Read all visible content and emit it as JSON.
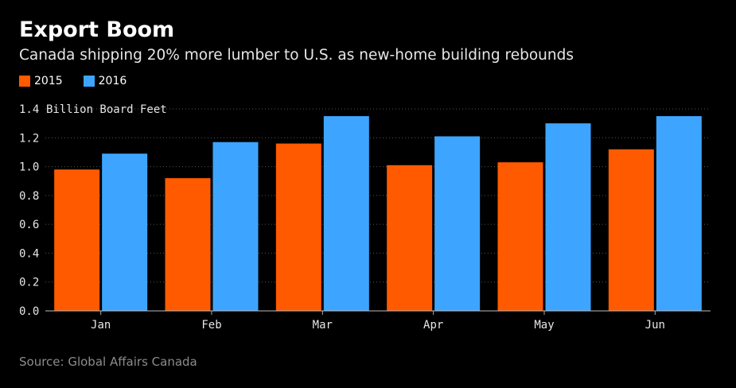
{
  "header": {
    "title": "Export Boom",
    "subtitle": "Canada shipping 20% more lumber to U.S. as new-home building rebounds"
  },
  "footer": {
    "source": "Source: Global Affairs Canada"
  },
  "colors": {
    "series_2015": "#ff5a00",
    "series_2016": "#3da5ff",
    "background": "#000000"
  },
  "chart_data": {
    "type": "bar",
    "title": "Export Boom",
    "subtitle": "Canada shipping 20% more lumber to U.S. as new-home building rebounds",
    "ylabel": "Billion Board Feet",
    "xlabel": "",
    "categories": [
      "Jan",
      "Feb",
      "Mar",
      "Apr",
      "May",
      "Jun"
    ],
    "series": [
      {
        "name": "2015",
        "values": [
          0.98,
          0.92,
          1.16,
          1.01,
          1.03,
          1.12
        ]
      },
      {
        "name": "2016",
        "values": [
          1.09,
          1.17,
          1.35,
          1.21,
          1.3,
          1.35
        ]
      }
    ],
    "ylim": [
      0,
      1.4
    ],
    "yticks": [
      "0.0",
      "0.2",
      "0.4",
      "0.6",
      "0.8",
      "1.0",
      "1.2",
      "1.4"
    ],
    "grid": true,
    "legend_position": "top-left"
  }
}
